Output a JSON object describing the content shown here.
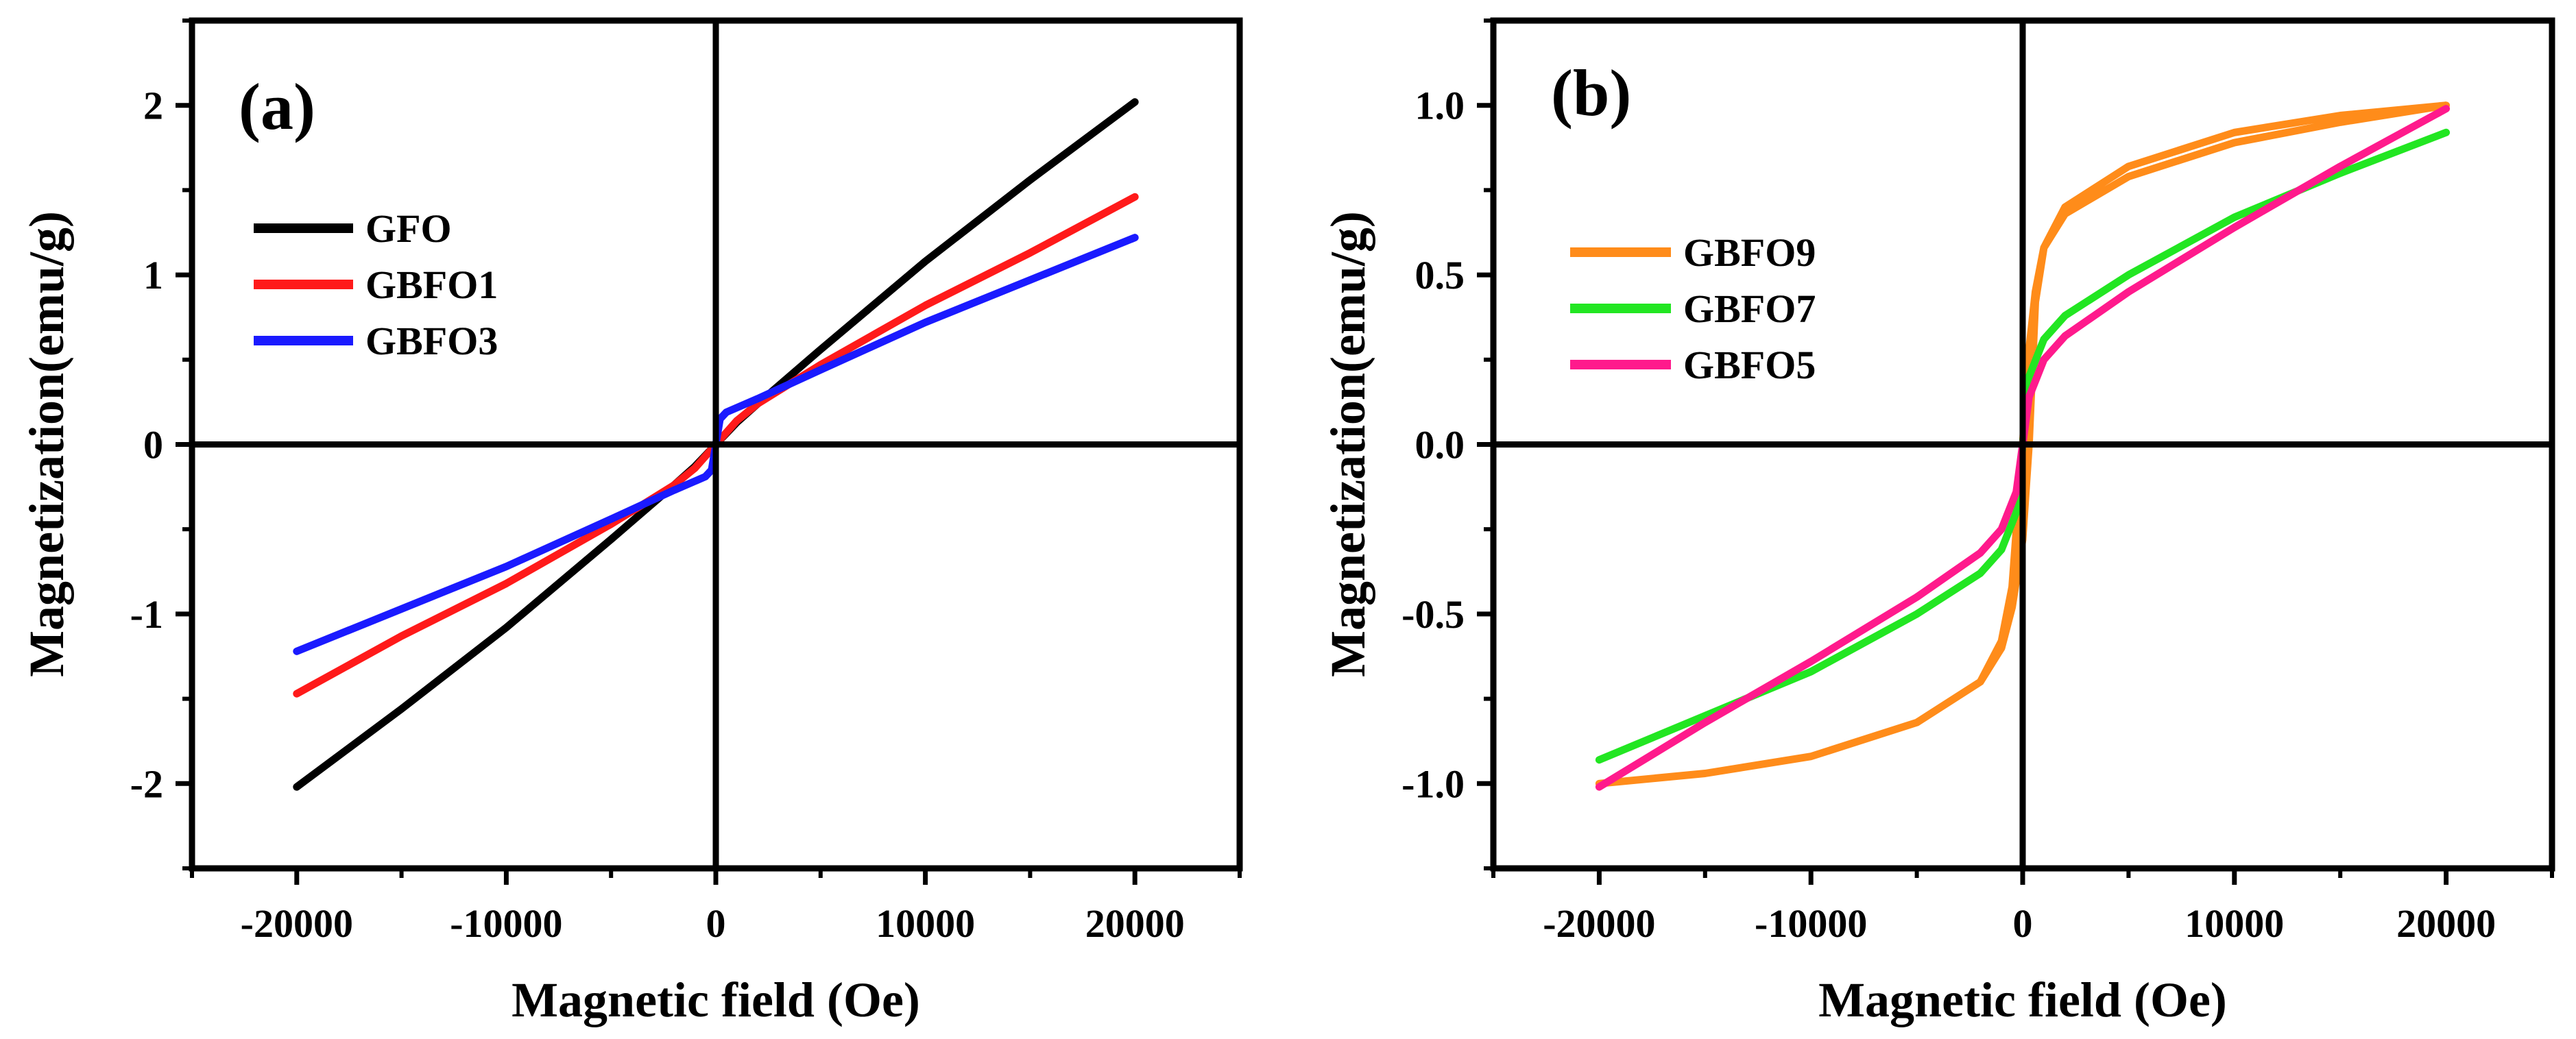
{
  "chart_data": [
    {
      "type": "line",
      "panel_label": "(a)",
      "xlabel": "Magnetic field (Oe)",
      "ylabel": "Magnetization(emu/g)",
      "xlim": [
        -25000,
        25000
      ],
      "ylim": [
        -2.5,
        2.5
      ],
      "xticks": [
        -20000,
        -10000,
        0,
        10000,
        20000
      ],
      "xtick_labels": [
        "-20000",
        "-10000",
        "0",
        "10000",
        "20000"
      ],
      "yticks": [
        -2,
        -1,
        0,
        1,
        2
      ],
      "ytick_labels": [
        "-2",
        "-1",
        "0",
        "1",
        "2"
      ],
      "legend_position": "upper-left",
      "series": [
        {
          "name": "GFO",
          "color": "#000000",
          "x": [
            -20000,
            -15000,
            -10000,
            -5000,
            -2000,
            -1000,
            0,
            1000,
            2000,
            5000,
            10000,
            15000,
            20000
          ],
          "y": [
            -2.02,
            -1.56,
            -1.08,
            -0.56,
            -0.24,
            -0.13,
            0.0,
            0.13,
            0.24,
            0.56,
            1.08,
            1.56,
            2.02
          ]
        },
        {
          "name": "GBFO1",
          "color": "#ff1a1a",
          "x": [
            -20000,
            -15000,
            -10000,
            -5000,
            -2000,
            -1000,
            0,
            1000,
            2000,
            5000,
            10000,
            15000,
            20000
          ],
          "y": [
            -1.47,
            -1.13,
            -0.82,
            -0.47,
            -0.24,
            -0.14,
            0.0,
            0.14,
            0.24,
            0.47,
            0.82,
            1.13,
            1.46
          ]
        },
        {
          "name": "GBFO3",
          "color": "#1a1aff",
          "x": [
            -20000,
            -15000,
            -10000,
            -5000,
            -2000,
            -500,
            -200,
            0,
            200,
            500,
            2000,
            5000,
            10000,
            15000,
            20000
          ],
          "y": [
            -1.22,
            -0.97,
            -0.72,
            -0.44,
            -0.27,
            -0.19,
            -0.15,
            0.0,
            0.15,
            0.19,
            0.27,
            0.44,
            0.72,
            0.97,
            1.22
          ]
        }
      ]
    },
    {
      "type": "line",
      "panel_label": "(b)",
      "xlabel": "Magnetic field (Oe)",
      "ylabel": "Magnetization(emu/g)",
      "xlim": [
        -25000,
        25000
      ],
      "ylim": [
        -1.25,
        1.25
      ],
      "xticks": [
        -20000,
        -10000,
        0,
        10000,
        20000
      ],
      "xtick_labels": [
        "-20000",
        "-10000",
        "0",
        "10000",
        "20000"
      ],
      "yticks": [
        -1.0,
        -0.5,
        0.0,
        0.5,
        1.0
      ],
      "ytick_labels": [
        "-1.0",
        "-0.5",
        "0.0",
        "0.5",
        "1.0"
      ],
      "legend_position": "upper-left",
      "series": [
        {
          "name": "GBFO9",
          "color": "#ff8c1a",
          "x": [
            -20000,
            -15000,
            -10000,
            -5000,
            -2000,
            -1000,
            -500,
            0,
            300,
            600,
            1000,
            2000,
            5000,
            10000,
            15000,
            20000,
            15000,
            10000,
            5000,
            2000,
            1000,
            600,
            300,
            0,
            -500,
            -1000,
            -2000,
            -5000,
            -10000,
            -15000,
            -20000
          ],
          "y": [
            -1.0,
            -0.97,
            -0.92,
            -0.82,
            -0.7,
            -0.6,
            -0.48,
            -0.28,
            0.0,
            0.42,
            0.58,
            0.7,
            0.82,
            0.92,
            0.97,
            1.0,
            0.95,
            0.89,
            0.79,
            0.68,
            0.58,
            0.45,
            0.28,
            0.0,
            -0.42,
            -0.58,
            -0.7,
            -0.82,
            -0.92,
            -0.97,
            -1.0
          ]
        },
        {
          "name": "GBFO7",
          "color": "#22e622",
          "x": [
            -20000,
            -15000,
            -10000,
            -5000,
            -2000,
            -1000,
            -300,
            0,
            300,
            1000,
            2000,
            5000,
            10000,
            15000,
            20000
          ],
          "y": [
            -0.93,
            -0.8,
            -0.67,
            -0.5,
            -0.38,
            -0.31,
            -0.2,
            0.0,
            0.2,
            0.31,
            0.38,
            0.5,
            0.67,
            0.8,
            0.92
          ]
        },
        {
          "name": "GBFO5",
          "color": "#ff1a8c",
          "x": [
            -20000,
            -15000,
            -10000,
            -5000,
            -2000,
            -1000,
            -300,
            0,
            300,
            1000,
            2000,
            5000,
            10000,
            15000,
            20000
          ],
          "y": [
            -1.01,
            -0.82,
            -0.64,
            -0.45,
            -0.32,
            -0.25,
            -0.14,
            0.0,
            0.14,
            0.25,
            0.32,
            0.45,
            0.64,
            0.82,
            0.99
          ]
        }
      ]
    }
  ]
}
